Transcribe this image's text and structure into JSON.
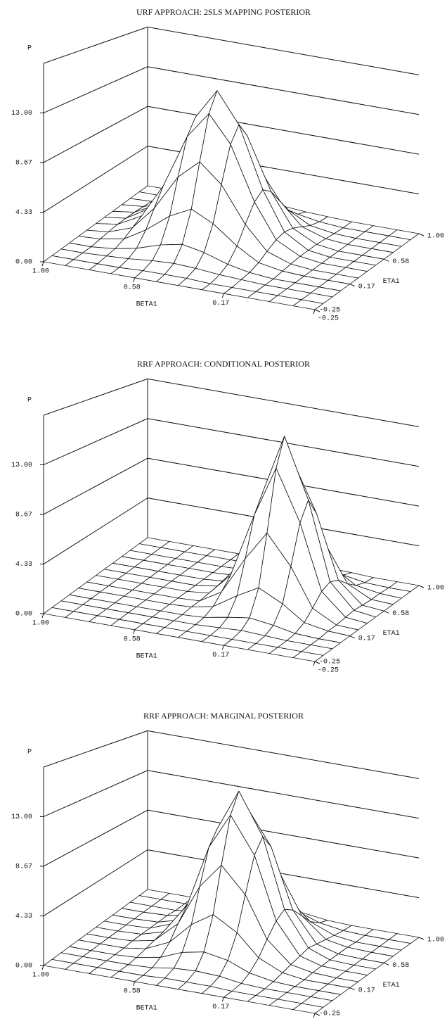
{
  "chart_data": [
    {
      "type": "surface",
      "title": "URF APPROACH: 2SLS MAPPING POSTERIOR",
      "xlabel": "BETA1",
      "ylabel": "ETA1",
      "zlabel": "P",
      "xlim": [
        1.0,
        -0.25
      ],
      "ylim": [
        -0.25,
        1.0
      ],
      "zlim": [
        0,
        17.33
      ],
      "xticks": [
        {
          "value": 1.0,
          "label": "1.00"
        },
        0.58,
        0.17,
        -0.25
      ],
      "yticks": [
        -0.25,
        0.17,
        0.58,
        {
          "value": 1.0,
          "label": "1.00"
        }
      ],
      "zticks": [
        {
          "value": 0,
          "label": "0.00"
        },
        4.33,
        8.67,
        {
          "value": 13.0,
          "label": "13.00"
        }
      ],
      "x": [
        1.0,
        0.9,
        0.79,
        0.69,
        0.58,
        0.48,
        0.38,
        0.27,
        0.17,
        0.06,
        -0.04,
        -0.15,
        -0.25
      ],
      "y": [
        -0.25,
        -0.15,
        -0.04,
        0.06,
        0.17,
        0.27,
        0.38,
        0.48,
        0.58,
        0.69,
        0.79,
        0.9,
        1.0
      ],
      "z": [
        [
          0,
          0,
          0,
          0,
          0,
          0,
          0,
          0,
          0,
          0,
          0,
          0,
          0
        ],
        [
          0,
          0,
          0,
          0,
          0.1,
          0.1,
          0.1,
          0,
          0,
          0,
          0,
          0,
          0
        ],
        [
          0,
          0,
          0.1,
          0.2,
          0.4,
          0.5,
          0.4,
          0.2,
          0.1,
          0,
          0,
          0,
          0
        ],
        [
          0,
          0,
          0.2,
          0.6,
          1.3,
          1.7,
          1.3,
          0.6,
          0.2,
          0,
          0,
          0,
          0
        ],
        [
          0,
          0.1,
          0.5,
          1.7,
          3.4,
          4.4,
          3.4,
          1.7,
          0.5,
          0.1,
          0,
          0,
          0
        ],
        [
          0,
          0.2,
          1.0,
          3.2,
          6.6,
          8.4,
          6.6,
          3.2,
          1.0,
          0.2,
          0,
          0,
          0
        ],
        [
          0,
          0.3,
          1.5,
          4.8,
          10.0,
          12.6,
          10.0,
          4.8,
          1.5,
          0.3,
          0,
          0,
          0
        ],
        [
          0,
          0.3,
          1.7,
          5.5,
          11.5,
          14.5,
          11.5,
          5.5,
          1.7,
          0.3,
          0,
          0,
          0
        ],
        [
          0,
          0.3,
          1.5,
          4.8,
          10.0,
          12.6,
          10.0,
          4.8,
          1.5,
          0.3,
          0,
          0,
          0
        ],
        [
          0,
          0.2,
          1.0,
          3.2,
          6.6,
          8.4,
          6.6,
          3.2,
          1.0,
          0.2,
          0,
          0,
          0
        ],
        [
          0,
          0.1,
          0.5,
          1.7,
          3.4,
          4.4,
          3.4,
          1.7,
          0.5,
          0.1,
          0,
          0,
          0
        ],
        [
          0,
          0,
          0.2,
          0.6,
          1.3,
          1.7,
          1.3,
          0.6,
          0.2,
          0,
          0,
          0,
          0
        ],
        [
          0,
          0,
          0.1,
          0.2,
          0.4,
          0.5,
          0.4,
          0.2,
          0.1,
          0,
          0,
          0,
          0
        ]
      ]
    },
    {
      "type": "surface",
      "title": "RRF APPROACH: CONDITIONAL POSTERIOR",
      "xlabel": "BETA1",
      "ylabel": "ETA1",
      "zlabel": "P",
      "xlim": [
        1.0,
        -0.25
      ],
      "ylim": [
        -0.25,
        1.0
      ],
      "zlim": [
        0,
        17.33
      ],
      "xticks": [
        {
          "value": 1.0,
          "label": "1.00"
        },
        0.58,
        0.17,
        -0.25
      ],
      "yticks": [
        -0.25,
        0.17,
        0.58,
        {
          "value": 1.0,
          "label": "1.00"
        }
      ],
      "zticks": [
        {
          "value": 0,
          "label": "0.00"
        },
        4.33,
        8.67,
        {
          "value": 13.0,
          "label": "13.00"
        }
      ],
      "x": [
        1.0,
        0.9,
        0.79,
        0.69,
        0.58,
        0.48,
        0.38,
        0.27,
        0.17,
        0.06,
        -0.04,
        -0.15,
        -0.25
      ],
      "y": [
        -0.25,
        -0.15,
        -0.04,
        0.06,
        0.17,
        0.27,
        0.38,
        0.48,
        0.58,
        0.69,
        0.79,
        0.9,
        1.0
      ],
      "z": [
        [
          0,
          0,
          0,
          0,
          0,
          0,
          0,
          0,
          0,
          0,
          0,
          0,
          0
        ],
        [
          0,
          0,
          0,
          0,
          0,
          0,
          0,
          0,
          0,
          0,
          0,
          0,
          0
        ],
        [
          0,
          0,
          0,
          0,
          0,
          0,
          0,
          0.1,
          0.2,
          0.1,
          0,
          0,
          0
        ],
        [
          0,
          0,
          0,
          0,
          0,
          0,
          0.1,
          0.5,
          0.8,
          0.5,
          0.1,
          0,
          0
        ],
        [
          0,
          0,
          0,
          0,
          0,
          0.1,
          0.5,
          1.9,
          3.0,
          1.9,
          0.5,
          0.1,
          0
        ],
        [
          0,
          0,
          0,
          0,
          0,
          0.1,
          1.3,
          4.9,
          7.7,
          4.9,
          1.3,
          0.1,
          0
        ],
        [
          0,
          0,
          0,
          0,
          0,
          0.2,
          2.3,
          8.6,
          13.5,
          8.6,
          2.3,
          0.2,
          0
        ],
        [
          0,
          0,
          0,
          0,
          0,
          0.3,
          2.7,
          10.4,
          16.3,
          10.4,
          2.7,
          0.3,
          0
        ],
        [
          0,
          0,
          0,
          0,
          0,
          0.2,
          2.3,
          8.6,
          13.5,
          8.6,
          2.3,
          0.2,
          0
        ],
        [
          0,
          0,
          0,
          0,
          0,
          0.1,
          1.3,
          4.9,
          7.7,
          4.9,
          1.3,
          0.1,
          0
        ],
        [
          0,
          0,
          0,
          0,
          0,
          0.1,
          0.5,
          1.9,
          3.0,
          1.9,
          0.5,
          0.1,
          0
        ],
        [
          0,
          0,
          0,
          0,
          0,
          0,
          0.1,
          0.5,
          0.8,
          0.5,
          0.1,
          0,
          0
        ],
        [
          0,
          0,
          0,
          0,
          0,
          0,
          0,
          0.1,
          0.2,
          0.1,
          0,
          0,
          0
        ]
      ]
    },
    {
      "type": "surface",
      "title": "RRF APPROACH: MARGINAL POSTERIOR",
      "xlabel": "BETA1",
      "ylabel": "ETA1",
      "zlabel": "P",
      "xlim": [
        1.0,
        -0.25
      ],
      "ylim": [
        -0.25,
        1.0
      ],
      "zlim": [
        0,
        17.33
      ],
      "xticks": [
        {
          "value": 1.0,
          "label": "1.00"
        },
        0.58,
        0.17,
        -0.25
      ],
      "yticks": [
        -0.25,
        0.17,
        0.58,
        {
          "value": 1.0,
          "label": "1.00"
        }
      ],
      "zticks": [
        {
          "value": 0,
          "label": "0.00"
        },
        4.33,
        8.67,
        {
          "value": 13.0,
          "label": "13.00"
        }
      ],
      "x": [
        1.0,
        0.9,
        0.79,
        0.69,
        0.58,
        0.48,
        0.38,
        0.27,
        0.17,
        0.06,
        -0.04,
        -0.15,
        -0.25
      ],
      "y": [
        -0.25,
        -0.15,
        -0.04,
        0.06,
        0.17,
        0.27,
        0.38,
        0.48,
        0.58,
        0.69,
        0.79,
        0.9,
        1.0
      ],
      "z": [
        [
          0,
          0,
          0,
          0,
          0,
          0,
          0,
          0,
          0,
          0,
          0,
          0,
          0
        ],
        [
          0,
          0,
          0,
          0,
          0,
          0.1,
          0.1,
          0.1,
          0,
          0,
          0,
          0,
          0
        ],
        [
          0,
          0,
          0,
          0,
          0.1,
          0.4,
          0.5,
          0.4,
          0.1,
          0,
          0,
          0,
          0
        ],
        [
          0,
          0,
          0,
          0.1,
          0.5,
          1.3,
          1.7,
          1.3,
          0.5,
          0.1,
          0,
          0,
          0
        ],
        [
          0,
          0,
          0,
          0.3,
          1.3,
          3.3,
          4.6,
          3.3,
          1.3,
          0.3,
          0,
          0,
          0
        ],
        [
          0,
          0,
          0.1,
          0.5,
          2.5,
          6.4,
          8.8,
          6.4,
          2.5,
          0.5,
          0.1,
          0,
          0
        ],
        [
          0,
          0,
          0.1,
          0.7,
          3.7,
          9.7,
          13.2,
          9.7,
          3.7,
          0.7,
          0.1,
          0,
          0
        ],
        [
          0,
          0,
          0.1,
          0.9,
          4.3,
          11.1,
          15.2,
          11.1,
          4.3,
          0.9,
          0.1,
          0,
          0
        ],
        [
          0,
          0,
          0.1,
          0.7,
          3.7,
          9.7,
          13.2,
          9.7,
          3.7,
          0.7,
          0.1,
          0,
          0
        ],
        [
          0,
          0,
          0.1,
          0.5,
          2.5,
          6.4,
          8.8,
          6.4,
          2.5,
          0.5,
          0.1,
          0,
          0
        ],
        [
          0,
          0,
          0,
          0.3,
          1.3,
          3.3,
          4.6,
          3.3,
          1.3,
          0.3,
          0,
          0,
          0
        ],
        [
          0,
          0,
          0,
          0.1,
          0.5,
          1.3,
          1.7,
          1.3,
          0.5,
          0.1,
          0,
          0,
          0
        ],
        [
          0,
          0,
          0,
          0,
          0.1,
          0.4,
          0.5,
          0.4,
          0.1,
          0,
          0,
          0,
          0
        ]
      ]
    }
  ]
}
